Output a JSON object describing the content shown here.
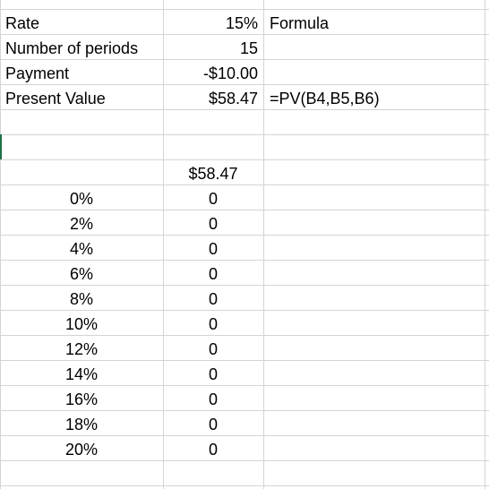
{
  "inputs": [
    {
      "label": "Rate",
      "value": "15%",
      "note": "Formula"
    },
    {
      "label": "Number of periods",
      "value": "15",
      "note": ""
    },
    {
      "label": "Payment",
      "value": "-$10.00",
      "note": ""
    },
    {
      "label": "Present Value",
      "value": "$58.47",
      "note": "=PV(B4,B5,B6)"
    }
  ],
  "table_header_value": "$58.47",
  "rates": [
    {
      "rate": "0%",
      "value": "0"
    },
    {
      "rate": "2%",
      "value": "0"
    },
    {
      "rate": "4%",
      "value": "0"
    },
    {
      "rate": "6%",
      "value": "0"
    },
    {
      "rate": "8%",
      "value": "0"
    },
    {
      "rate": "10%",
      "value": "0"
    },
    {
      "rate": "12%",
      "value": "0"
    },
    {
      "rate": "14%",
      "value": "0"
    },
    {
      "rate": "16%",
      "value": "0"
    },
    {
      "rate": "18%",
      "value": "0"
    },
    {
      "rate": "20%",
      "value": "0"
    }
  ]
}
